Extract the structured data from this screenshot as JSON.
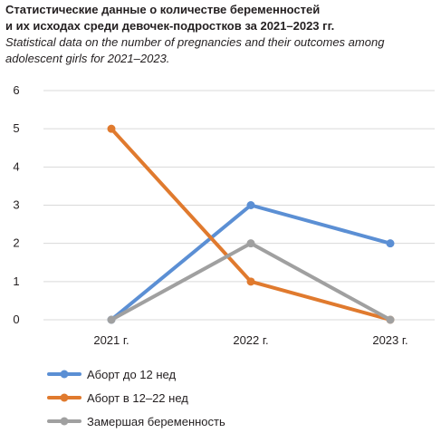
{
  "title_ru_line1": "Статистические данные о количестве беременностей",
  "title_ru_line2": "и их исходах среди девочек-подростков за 2021–2023 гг.",
  "title_en_line1": "Statistical data on the number of pregnancies and their outcomes among",
  "title_en_line2": "adolescent girls for 2021–2023.",
  "chart_data": {
    "type": "line",
    "categories": [
      "2021 г.",
      "2022 г.",
      "2023 г."
    ],
    "ylim": [
      0,
      6
    ],
    "yticks": [
      0,
      1,
      2,
      3,
      4,
      5,
      6
    ],
    "grid": "horizontal",
    "legend_position": "bottom-left",
    "series": [
      {
        "name": "Аборт до 12 нед",
        "values": [
          0,
          3,
          2
        ],
        "color": "#5b8fd4"
      },
      {
        "name": "Аборт в 12–22 нед",
        "values": [
          5,
          1,
          0
        ],
        "color": "#e07a2e"
      },
      {
        "name": "Замершая беременность",
        "values": [
          0,
          2,
          0
        ],
        "color": "#a0a0a0"
      }
    ]
  }
}
